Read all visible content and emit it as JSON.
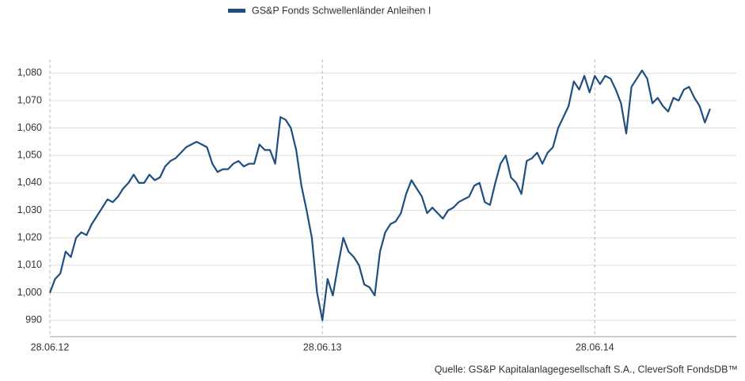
{
  "chart_data": {
    "type": "line",
    "series": [
      {
        "name": "GS&P Fonds Schwellenländer Anleihen I",
        "color": "#1f4e7f",
        "values": [
          1000,
          1005,
          1007,
          1015,
          1013,
          1020,
          1022,
          1021,
          1025,
          1028,
          1031,
          1034,
          1033,
          1035,
          1038,
          1040,
          1043,
          1040,
          1040,
          1043,
          1041,
          1042,
          1046,
          1048,
          1049,
          1051,
          1053,
          1054,
          1055,
          1054,
          1053,
          1047,
          1044,
          1045,
          1045,
          1047,
          1048,
          1046,
          1047,
          1047,
          1054,
          1052,
          1052,
          1047,
          1064,
          1063,
          1060,
          1052,
          1039,
          1030,
          1020,
          1000,
          990,
          1005,
          999,
          1010,
          1020,
          1015,
          1013,
          1010,
          1003,
          1002,
          999,
          1015,
          1022,
          1025,
          1026,
          1029,
          1036,
          1041,
          1038,
          1035,
          1029,
          1031,
          1029,
          1027,
          1030,
          1031,
          1033,
          1034,
          1035,
          1039,
          1040,
          1033,
          1032,
          1040,
          1047,
          1050,
          1042,
          1040,
          1036,
          1048,
          1049,
          1051,
          1047,
          1051,
          1053,
          1060,
          1064,
          1068,
          1077,
          1074,
          1079,
          1073,
          1079,
          1076,
          1079,
          1078,
          1074,
          1069,
          1058,
          1075,
          1078,
          1081,
          1078,
          1069,
          1071,
          1068,
          1066,
          1071,
          1070,
          1074,
          1075,
          1071,
          1068,
          1062,
          1067
        ]
      }
    ],
    "xlim": [
      0,
      131
    ],
    "xticks": [
      {
        "value": 0,
        "label": "28.06.12"
      },
      {
        "value": 52,
        "label": "28.06.13"
      },
      {
        "value": 104,
        "label": "28.06.14"
      }
    ],
    "ylim": [
      984,
      1085
    ],
    "yticks": [
      990,
      {
        "value": 1000,
        "label": "1,000"
      },
      {
        "value": 1010,
        "label": "1,010"
      },
      {
        "value": 1020,
        "label": "1,020"
      },
      {
        "value": 1030,
        "label": "1,030"
      },
      {
        "value": 1040,
        "label": "1,040"
      },
      {
        "value": 1050,
        "label": "1,050"
      },
      {
        "value": 1060,
        "label": "1,060"
      },
      {
        "value": 1070,
        "label": "1,070"
      },
      {
        "value": 1080,
        "label": "1,080"
      }
    ],
    "grid": true,
    "source": "Quelle: GS&P  Kapitalanlagegesellschaft S.A., CleverSoft FondsDB™"
  }
}
